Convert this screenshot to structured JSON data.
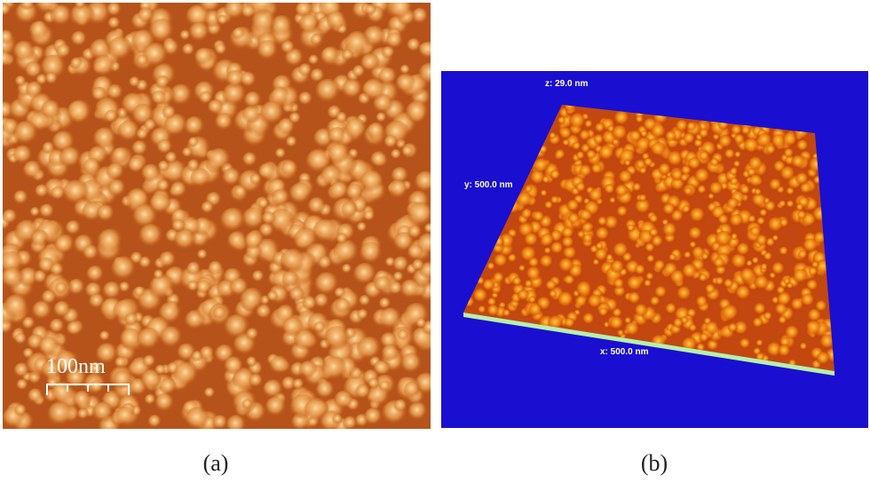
{
  "panels": [
    {
      "label": "(a)",
      "scale_bar": "100nm"
    },
    {
      "label": "(b)",
      "axes": {
        "z": "z: 29.0 nm",
        "y": "y: 500.0 nm",
        "x": "x: 500.0 nm"
      }
    }
  ]
}
